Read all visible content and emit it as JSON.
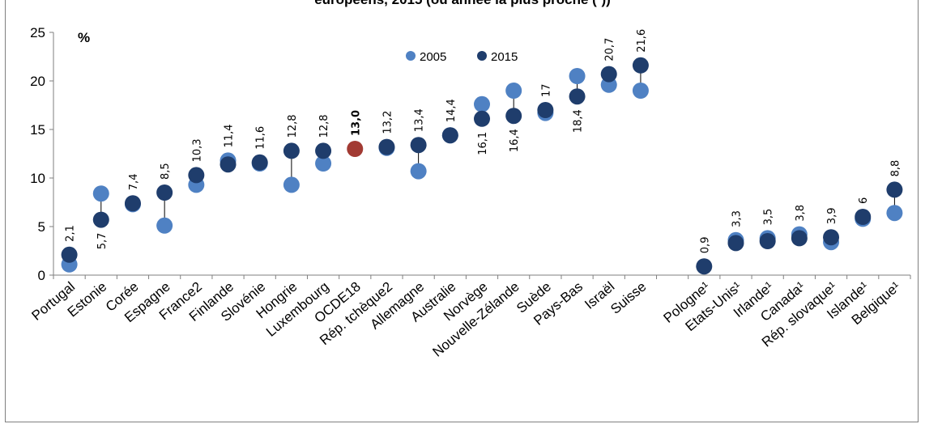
{
  "chart_data": {
    "type": "scatter",
    "title": "européens, 2015 (ou année la plus proche (¹))",
    "ylabel": "%",
    "ylim": [
      0,
      25
    ],
    "yticks": [
      0,
      5,
      10,
      15,
      20,
      25
    ],
    "grid": false,
    "legend_position": "top-center",
    "series": [
      {
        "name": "2005",
        "color": "#4f81c3"
      },
      {
        "name": "2015",
        "color": "#1f3d6c"
      }
    ],
    "highlight_color": "#a23a33",
    "categories": [
      "Portugal",
      "Estonie",
      "Corée",
      "Espagne",
      "France2",
      "Finlande",
      "Slovénie",
      "Hongrie",
      "Luxembourg",
      "OCDE18",
      "Rép. tchèque2",
      "Allemagne",
      "Australie",
      "Norvège",
      "Nouvelle-Zélande",
      "Suède",
      "Pays-Bas",
      "Israël",
      "Suisse",
      "",
      "Pologne¹",
      "Etats-Unis¹",
      "Irlande¹",
      "Canada¹",
      "Rép. slovaque¹",
      "Islande¹",
      "Belgique¹"
    ],
    "values_2005": [
      1.1,
      8.4,
      7.3,
      5.1,
      9.3,
      11.8,
      11.5,
      9.3,
      11.5,
      null,
      13.1,
      10.7,
      14.4,
      17.6,
      19.0,
      16.7,
      20.5,
      19.6,
      19.0,
      null,
      null,
      3.6,
      3.8,
      4.2,
      3.4,
      5.8,
      6.4
    ],
    "values_2015": [
      2.1,
      5.7,
      7.4,
      8.5,
      10.3,
      11.4,
      11.6,
      12.8,
      12.8,
      13.0,
      13.2,
      13.4,
      14.4,
      16.1,
      16.4,
      17.0,
      18.4,
      20.7,
      21.6,
      null,
      0.9,
      3.3,
      3.5,
      3.8,
      3.9,
      6.0,
      8.8
    ],
    "data_labels": [
      "2,1",
      "5,7",
      "7,4",
      "8,5",
      "10,3",
      "11,4",
      "11,6",
      "12,8",
      "12,8",
      "13,0",
      "13,2",
      "13,4",
      "14,4",
      "16,1",
      "16,4",
      "17",
      "18,4",
      "20,7",
      "21,6",
      "",
      "0,9",
      "3,3",
      "3,5",
      "3,8",
      "3,9",
      "6",
      "8,8"
    ],
    "data_label_placement": [
      "above",
      "below",
      "above",
      "above",
      "above",
      "above",
      "above",
      "above",
      "above",
      "above",
      "above",
      "above",
      "above",
      "below",
      "below",
      "above",
      "below",
      "above",
      "above",
      "",
      "above",
      "above",
      "above",
      "above",
      "above",
      "above",
      "above"
    ]
  }
}
